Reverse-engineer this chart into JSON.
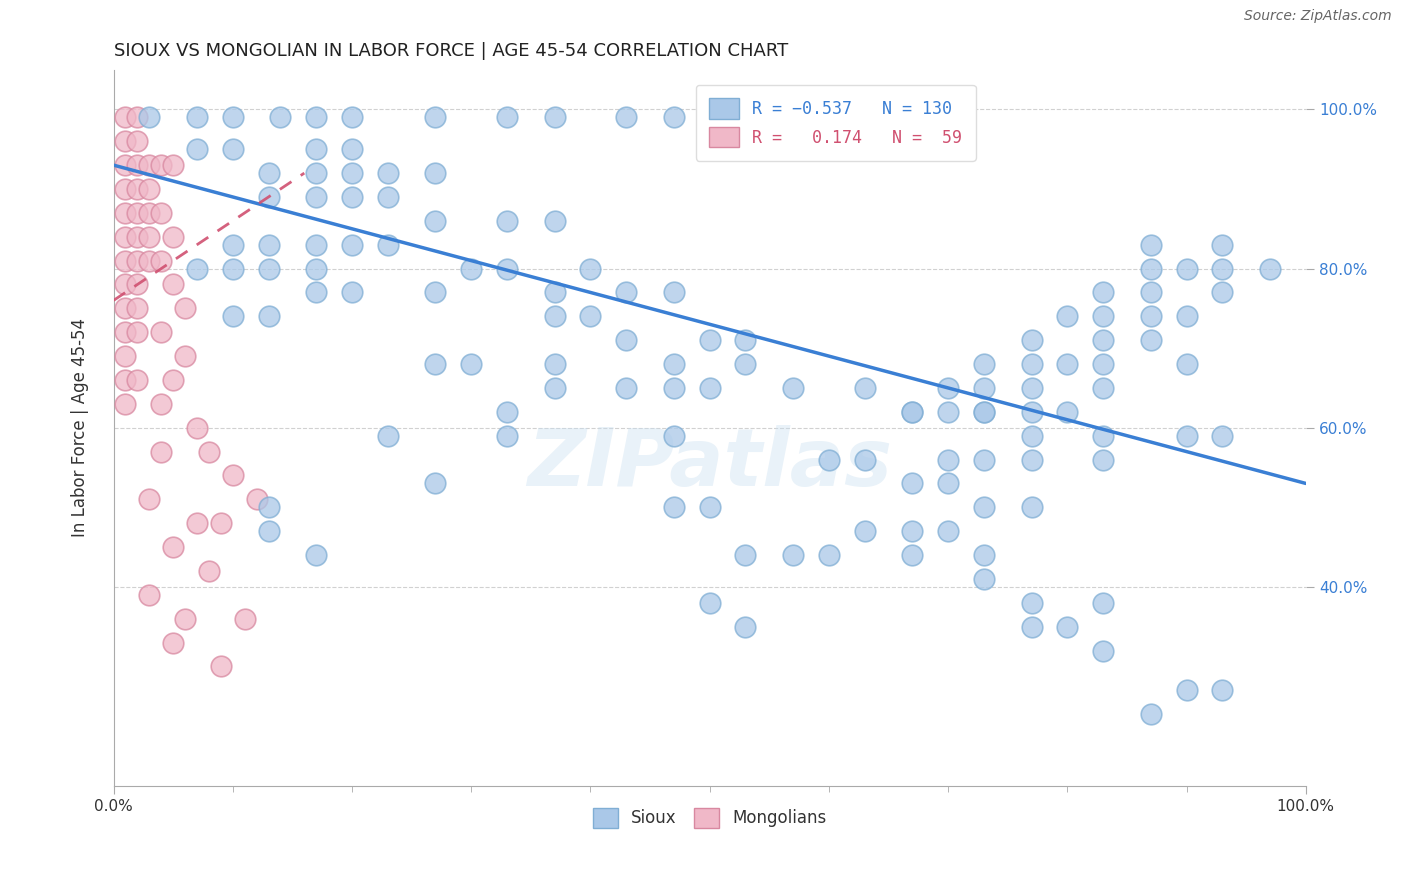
{
  "title": "SIOUX VS MONGOLIAN IN LABOR FORCE | AGE 45-54 CORRELATION CHART",
  "source_text": "Source: ZipAtlas.com",
  "ylabel": "In Labor Force | Age 45-54",
  "xlim": [
    0.0,
    1.0
  ],
  "ylim": [
    0.15,
    1.05
  ],
  "sioux_color": "#aac8e8",
  "sioux_edge_color": "#80aed4",
  "mongolian_color": "#f0b8c8",
  "mongolian_edge_color": "#d888a0",
  "trend_sioux_color": "#3a7fd4",
  "trend_mongolian_color": "#d05070",
  "background_color": "#ffffff",
  "watermark": "ZIPatlas",
  "ytick_positions": [
    0.4,
    0.6,
    0.8,
    1.0
  ],
  "ytick_labels": [
    "40.0%",
    "60.0%",
    "80.0%",
    "100.0%"
  ],
  "xtick_positions": [
    0.0,
    1.0
  ],
  "xtick_labels": [
    "0.0%",
    "100.0%"
  ],
  "sioux_trend_x": [
    0.0,
    1.0
  ],
  "sioux_trend_y": [
    0.93,
    0.53
  ],
  "mongolian_trend_x": [
    0.0,
    0.16
  ],
  "mongolian_trend_y": [
    0.76,
    0.92
  ],
  "sioux_points": [
    [
      0.03,
      0.99
    ],
    [
      0.07,
      0.99
    ],
    [
      0.1,
      0.99
    ],
    [
      0.14,
      0.99
    ],
    [
      0.17,
      0.99
    ],
    [
      0.2,
      0.99
    ],
    [
      0.27,
      0.99
    ],
    [
      0.33,
      0.99
    ],
    [
      0.37,
      0.99
    ],
    [
      0.43,
      0.99
    ],
    [
      0.47,
      0.99
    ],
    [
      0.5,
      0.99
    ],
    [
      0.57,
      0.99
    ],
    [
      0.63,
      0.99
    ],
    [
      0.67,
      0.99
    ],
    [
      0.07,
      0.95
    ],
    [
      0.1,
      0.95
    ],
    [
      0.17,
      0.95
    ],
    [
      0.2,
      0.95
    ],
    [
      0.13,
      0.92
    ],
    [
      0.17,
      0.92
    ],
    [
      0.2,
      0.92
    ],
    [
      0.23,
      0.92
    ],
    [
      0.27,
      0.92
    ],
    [
      0.13,
      0.89
    ],
    [
      0.17,
      0.89
    ],
    [
      0.2,
      0.89
    ],
    [
      0.23,
      0.89
    ],
    [
      0.27,
      0.86
    ],
    [
      0.33,
      0.86
    ],
    [
      0.37,
      0.86
    ],
    [
      0.1,
      0.83
    ],
    [
      0.13,
      0.83
    ],
    [
      0.17,
      0.83
    ],
    [
      0.2,
      0.83
    ],
    [
      0.23,
      0.83
    ],
    [
      0.07,
      0.8
    ],
    [
      0.1,
      0.8
    ],
    [
      0.13,
      0.8
    ],
    [
      0.17,
      0.8
    ],
    [
      0.3,
      0.8
    ],
    [
      0.33,
      0.8
    ],
    [
      0.4,
      0.8
    ],
    [
      0.17,
      0.77
    ],
    [
      0.2,
      0.77
    ],
    [
      0.27,
      0.77
    ],
    [
      0.37,
      0.77
    ],
    [
      0.43,
      0.77
    ],
    [
      0.47,
      0.77
    ],
    [
      0.1,
      0.74
    ],
    [
      0.13,
      0.74
    ],
    [
      0.37,
      0.74
    ],
    [
      0.4,
      0.74
    ],
    [
      0.43,
      0.71
    ],
    [
      0.5,
      0.71
    ],
    [
      0.53,
      0.71
    ],
    [
      0.27,
      0.68
    ],
    [
      0.3,
      0.68
    ],
    [
      0.37,
      0.68
    ],
    [
      0.47,
      0.68
    ],
    [
      0.53,
      0.68
    ],
    [
      0.37,
      0.65
    ],
    [
      0.43,
      0.65
    ],
    [
      0.47,
      0.65
    ],
    [
      0.5,
      0.65
    ],
    [
      0.57,
      0.65
    ],
    [
      0.63,
      0.65
    ],
    [
      0.67,
      0.62
    ],
    [
      0.7,
      0.62
    ],
    [
      0.73,
      0.62
    ],
    [
      0.77,
      0.62
    ],
    [
      0.8,
      0.62
    ],
    [
      0.87,
      0.83
    ],
    [
      0.93,
      0.83
    ],
    [
      0.87,
      0.8
    ],
    [
      0.9,
      0.8
    ],
    [
      0.93,
      0.8
    ],
    [
      0.97,
      0.8
    ],
    [
      0.83,
      0.77
    ],
    [
      0.87,
      0.77
    ],
    [
      0.93,
      0.77
    ],
    [
      0.8,
      0.74
    ],
    [
      0.83,
      0.74
    ],
    [
      0.87,
      0.74
    ],
    [
      0.9,
      0.74
    ],
    [
      0.77,
      0.71
    ],
    [
      0.83,
      0.71
    ],
    [
      0.87,
      0.71
    ],
    [
      0.73,
      0.68
    ],
    [
      0.77,
      0.68
    ],
    [
      0.8,
      0.68
    ],
    [
      0.83,
      0.68
    ],
    [
      0.9,
      0.68
    ],
    [
      0.7,
      0.65
    ],
    [
      0.73,
      0.65
    ],
    [
      0.77,
      0.65
    ],
    [
      0.83,
      0.65
    ],
    [
      0.67,
      0.62
    ],
    [
      0.73,
      0.62
    ],
    [
      0.77,
      0.59
    ],
    [
      0.83,
      0.59
    ],
    [
      0.9,
      0.59
    ],
    [
      0.7,
      0.56
    ],
    [
      0.73,
      0.56
    ],
    [
      0.77,
      0.56
    ],
    [
      0.83,
      0.56
    ],
    [
      0.67,
      0.53
    ],
    [
      0.7,
      0.53
    ],
    [
      0.73,
      0.5
    ],
    [
      0.77,
      0.5
    ],
    [
      0.63,
      0.47
    ],
    [
      0.67,
      0.47
    ],
    [
      0.7,
      0.47
    ],
    [
      0.6,
      0.44
    ],
    [
      0.67,
      0.44
    ],
    [
      0.73,
      0.44
    ],
    [
      0.73,
      0.41
    ],
    [
      0.77,
      0.38
    ],
    [
      0.83,
      0.38
    ],
    [
      0.77,
      0.35
    ],
    [
      0.8,
      0.35
    ],
    [
      0.83,
      0.32
    ],
    [
      0.93,
      0.59
    ],
    [
      0.13,
      0.5
    ],
    [
      0.13,
      0.47
    ],
    [
      0.47,
      0.5
    ],
    [
      0.5,
      0.5
    ],
    [
      0.53,
      0.44
    ],
    [
      0.57,
      0.44
    ],
    [
      0.5,
      0.38
    ],
    [
      0.53,
      0.35
    ],
    [
      0.33,
      0.62
    ],
    [
      0.33,
      0.59
    ],
    [
      0.47,
      0.59
    ],
    [
      0.17,
      0.44
    ],
    [
      0.23,
      0.59
    ],
    [
      0.27,
      0.53
    ],
    [
      0.9,
      0.27
    ],
    [
      0.93,
      0.27
    ],
    [
      0.87,
      0.24
    ],
    [
      0.6,
      0.56
    ],
    [
      0.63,
      0.56
    ]
  ],
  "mongolian_points": [
    [
      0.01,
      0.99
    ],
    [
      0.02,
      0.99
    ],
    [
      0.01,
      0.96
    ],
    [
      0.02,
      0.96
    ],
    [
      0.01,
      0.93
    ],
    [
      0.02,
      0.93
    ],
    [
      0.03,
      0.93
    ],
    [
      0.01,
      0.9
    ],
    [
      0.02,
      0.9
    ],
    [
      0.03,
      0.9
    ],
    [
      0.01,
      0.87
    ],
    [
      0.02,
      0.87
    ],
    [
      0.03,
      0.87
    ],
    [
      0.01,
      0.84
    ],
    [
      0.02,
      0.84
    ],
    [
      0.03,
      0.84
    ],
    [
      0.01,
      0.81
    ],
    [
      0.02,
      0.81
    ],
    [
      0.03,
      0.81
    ],
    [
      0.01,
      0.78
    ],
    [
      0.02,
      0.78
    ],
    [
      0.01,
      0.75
    ],
    [
      0.02,
      0.75
    ],
    [
      0.01,
      0.72
    ],
    [
      0.02,
      0.72
    ],
    [
      0.01,
      0.69
    ],
    [
      0.01,
      0.66
    ],
    [
      0.02,
      0.66
    ],
    [
      0.01,
      0.63
    ],
    [
      0.04,
      0.93
    ],
    [
      0.05,
      0.93
    ],
    [
      0.04,
      0.87
    ],
    [
      0.05,
      0.84
    ],
    [
      0.04,
      0.81
    ],
    [
      0.05,
      0.78
    ],
    [
      0.06,
      0.75
    ],
    [
      0.04,
      0.72
    ],
    [
      0.06,
      0.69
    ],
    [
      0.05,
      0.66
    ],
    [
      0.04,
      0.63
    ],
    [
      0.07,
      0.6
    ],
    [
      0.08,
      0.57
    ],
    [
      0.1,
      0.54
    ],
    [
      0.03,
      0.51
    ],
    [
      0.07,
      0.48
    ],
    [
      0.09,
      0.48
    ],
    [
      0.05,
      0.45
    ],
    [
      0.08,
      0.42
    ],
    [
      0.03,
      0.39
    ],
    [
      0.06,
      0.36
    ],
    [
      0.11,
      0.36
    ],
    [
      0.05,
      0.33
    ],
    [
      0.09,
      0.3
    ],
    [
      0.04,
      0.57
    ],
    [
      0.12,
      0.51
    ]
  ]
}
